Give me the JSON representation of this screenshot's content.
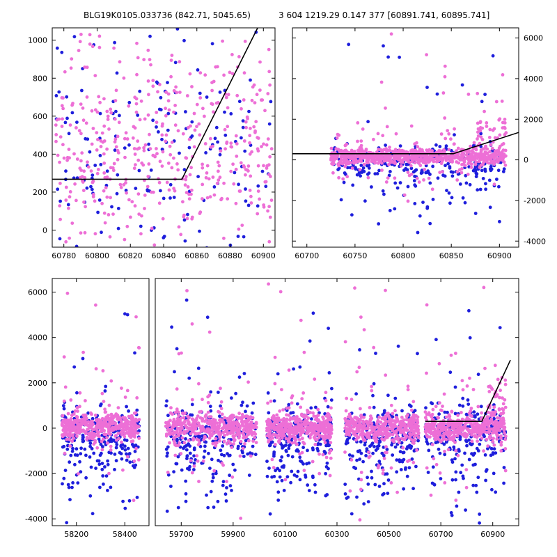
{
  "title": {
    "left": "BLG19K0105.033736 (842.71, 5045.65)",
    "right": "3 604 1219.29 0.147 377 [60891.741, 60895.741]"
  },
  "colors": {
    "magenta": "#ED6FD6",
    "blue": "#1E1EDC",
    "line": "#000000",
    "axis": "#000000",
    "background": "#FFFFFF"
  },
  "chart_data": [
    {
      "id": "top-left",
      "type": "scatter",
      "seed": 42,
      "ylim": [
        -90,
        1065
      ],
      "yticks": [
        0,
        200,
        400,
        600,
        800,
        1000
      ],
      "segments": [
        {
          "xlim": [
            60773,
            60907
          ],
          "xticks": [
            60780,
            60800,
            60820,
            60840,
            60860,
            60880,
            60900
          ]
        }
      ],
      "line": [
        [
          60773,
          268
        ],
        [
          60851,
          268
        ],
        [
          60898,
          1090
        ]
      ],
      "series": [
        {
          "name": "blue",
          "color": "blue",
          "clusters": [
            {
              "n": 150,
              "x": [
                60775,
                60905
              ],
              "dist": "normal",
              "mean": 380,
              "sd": 320
            },
            {
              "n": 30,
              "x": [
                60775,
                60905
              ],
              "dist": "uniform",
              "range": [
                -80,
                1060
              ]
            }
          ]
        },
        {
          "name": "magenta",
          "color": "magenta",
          "clusters": [
            {
              "n": 400,
              "x": [
                60775,
                60905
              ],
              "dist": "normal",
              "mean": 430,
              "sd": 250
            },
            {
              "n": 60,
              "x": [
                60775,
                60905
              ],
              "dist": "uniform",
              "range": [
                -80,
                1060
              ]
            }
          ]
        }
      ]
    },
    {
      "id": "top-right",
      "type": "scatter",
      "seed": 1337,
      "ylim": [
        -4300,
        6500
      ],
      "yticks": [
        -4000,
        -2000,
        0,
        2000,
        4000,
        6000
      ],
      "segments": [
        {
          "xlim": [
            60685,
            60920
          ],
          "xticks": [
            60700,
            60750,
            60800,
            60850,
            60900
          ]
        }
      ],
      "line": [
        [
          60685,
          300
        ],
        [
          60852,
          300
        ],
        [
          60920,
          1350
        ]
      ],
      "series": [
        {
          "name": "blue",
          "color": "blue",
          "clusters": [
            {
              "n": 200,
              "x": [
                60725,
                60905
              ],
              "dist": "normal",
              "mean": -150,
              "sd": 450
            },
            {
              "n": 90,
              "x": [
                60725,
                60905
              ],
              "dist": "normal",
              "mean": -900,
              "sd": 1200
            },
            {
              "n": 10,
              "x": [
                60740,
                60900
              ],
              "dist": "uniform",
              "range": [
                1500,
                5800
              ]
            }
          ]
        },
        {
          "name": "magenta",
          "color": "magenta",
          "clusters": [
            {
              "n": 650,
              "x": [
                60725,
                60905
              ],
              "dist": "normal",
              "mean": 150,
              "sd": 170
            },
            {
              "n": 120,
              "x": [
                60725,
                60905
              ],
              "dist": "normal",
              "mean": 0,
              "sd": 800
            },
            {
              "n": 60,
              "x": [
                60875,
                60908
              ],
              "dist": "normal",
              "mean": 900,
              "sd": 650
            },
            {
              "n": 12,
              "x": [
                60730,
                60905
              ],
              "dist": "uniform",
              "range": [
                2500,
                6200
              ]
            }
          ]
        }
      ]
    },
    {
      "id": "bottom",
      "type": "scatter",
      "seed": 2024,
      "ylim": [
        -4300,
        6600
      ],
      "yticks": [
        -4000,
        -2000,
        0,
        2000,
        4000,
        6000
      ],
      "segments": [
        {
          "xlim": [
            58100,
            58500
          ],
          "xticks": [
            58200,
            58400
          ]
        },
        {
          "xlim": [
            59600,
            61000
          ],
          "xticks": [
            59700,
            59900,
            60100,
            60300,
            60500,
            60700,
            60900
          ]
        }
      ],
      "line": [
        [
          60640,
          300
        ],
        [
          60858,
          300
        ],
        [
          60968,
          3000
        ]
      ],
      "series": [
        {
          "name": "blue",
          "color": "blue",
          "clusters": [
            {
              "n": 150,
              "x": [
                58140,
                58460
              ],
              "dist": "normal",
              "mean": -250,
              "sd": 550
            },
            {
              "n": 90,
              "x": [
                58140,
                58460
              ],
              "dist": "normal",
              "mean": -1100,
              "sd": 1300
            },
            {
              "n": 6,
              "x": [
                58140,
                58460
              ],
              "dist": "uniform",
              "range": [
                1500,
                5800
              ]
            },
            {
              "n": 150,
              "x": [
                59640,
                59990
              ],
              "dist": "normal",
              "mean": -250,
              "sd": 550
            },
            {
              "n": 90,
              "x": [
                59640,
                59990
              ],
              "dist": "normal",
              "mean": -1100,
              "sd": 1300
            },
            {
              "n": 6,
              "x": [
                59640,
                59990
              ],
              "dist": "uniform",
              "range": [
                1500,
                5800
              ]
            },
            {
              "n": 150,
              "x": [
                60030,
                60280
              ],
              "dist": "normal",
              "mean": -250,
              "sd": 550
            },
            {
              "n": 90,
              "x": [
                60030,
                60280
              ],
              "dist": "normal",
              "mean": -1100,
              "sd": 1300
            },
            {
              "n": 6,
              "x": [
                60030,
                60280
              ],
              "dist": "uniform",
              "range": [
                1500,
                5800
              ]
            },
            {
              "n": 150,
              "x": [
                60330,
                60615
              ],
              "dist": "normal",
              "mean": -250,
              "sd": 550
            },
            {
              "n": 90,
              "x": [
                60330,
                60615
              ],
              "dist": "normal",
              "mean": -1100,
              "sd": 1300
            },
            {
              "n": 6,
              "x": [
                60330,
                60615
              ],
              "dist": "uniform",
              "range": [
                1500,
                5800
              ]
            },
            {
              "n": 150,
              "x": [
                60640,
                60950
              ],
              "dist": "normal",
              "mean": -250,
              "sd": 550
            },
            {
              "n": 90,
              "x": [
                60640,
                60950
              ],
              "dist": "normal",
              "mean": -1100,
              "sd": 1300
            },
            {
              "n": 6,
              "x": [
                60640,
                60950
              ],
              "dist": "uniform",
              "range": [
                1500,
                5800
              ]
            }
          ]
        },
        {
          "name": "magenta",
          "color": "magenta",
          "clusters": [
            {
              "n": 380,
              "x": [
                58140,
                58460
              ],
              "dist": "normal",
              "mean": 30,
              "sd": 300
            },
            {
              "n": 60,
              "x": [
                58140,
                58460
              ],
              "dist": "normal",
              "mean": 0,
              "sd": 1300
            },
            {
              "n": 6,
              "x": [
                58140,
                58460
              ],
              "dist": "uniform",
              "range": [
                2000,
                6400
              ]
            },
            {
              "n": 380,
              "x": [
                59640,
                59990
              ],
              "dist": "normal",
              "mean": 30,
              "sd": 300
            },
            {
              "n": 60,
              "x": [
                59640,
                59990
              ],
              "dist": "normal",
              "mean": 0,
              "sd": 1300
            },
            {
              "n": 6,
              "x": [
                59640,
                59990
              ],
              "dist": "uniform",
              "range": [
                2000,
                6400
              ]
            },
            {
              "n": 380,
              "x": [
                60030,
                60280
              ],
              "dist": "normal",
              "mean": 30,
              "sd": 300
            },
            {
              "n": 60,
              "x": [
                60030,
                60280
              ],
              "dist": "normal",
              "mean": 0,
              "sd": 1300
            },
            {
              "n": 6,
              "x": [
                60030,
                60280
              ],
              "dist": "uniform",
              "range": [
                2000,
                6400
              ]
            },
            {
              "n": 380,
              "x": [
                60330,
                60615
              ],
              "dist": "normal",
              "mean": 30,
              "sd": 300
            },
            {
              "n": 60,
              "x": [
                60330,
                60615
              ],
              "dist": "normal",
              "mean": 0,
              "sd": 1300
            },
            {
              "n": 6,
              "x": [
                60330,
                60615
              ],
              "dist": "uniform",
              "range": [
                2000,
                6400
              ]
            },
            {
              "n": 380,
              "x": [
                60640,
                60950
              ],
              "dist": "normal",
              "mean": 30,
              "sd": 300
            },
            {
              "n": 60,
              "x": [
                60640,
                60950
              ],
              "dist": "normal",
              "mean": 0,
              "sd": 1300
            },
            {
              "n": 6,
              "x": [
                60640,
                60950
              ],
              "dist": "uniform",
              "range": [
                2000,
                6400
              ]
            },
            {
              "n": 50,
              "x": [
                60880,
                60950
              ],
              "dist": "normal",
              "mean": 800,
              "sd": 700
            }
          ]
        }
      ]
    }
  ]
}
